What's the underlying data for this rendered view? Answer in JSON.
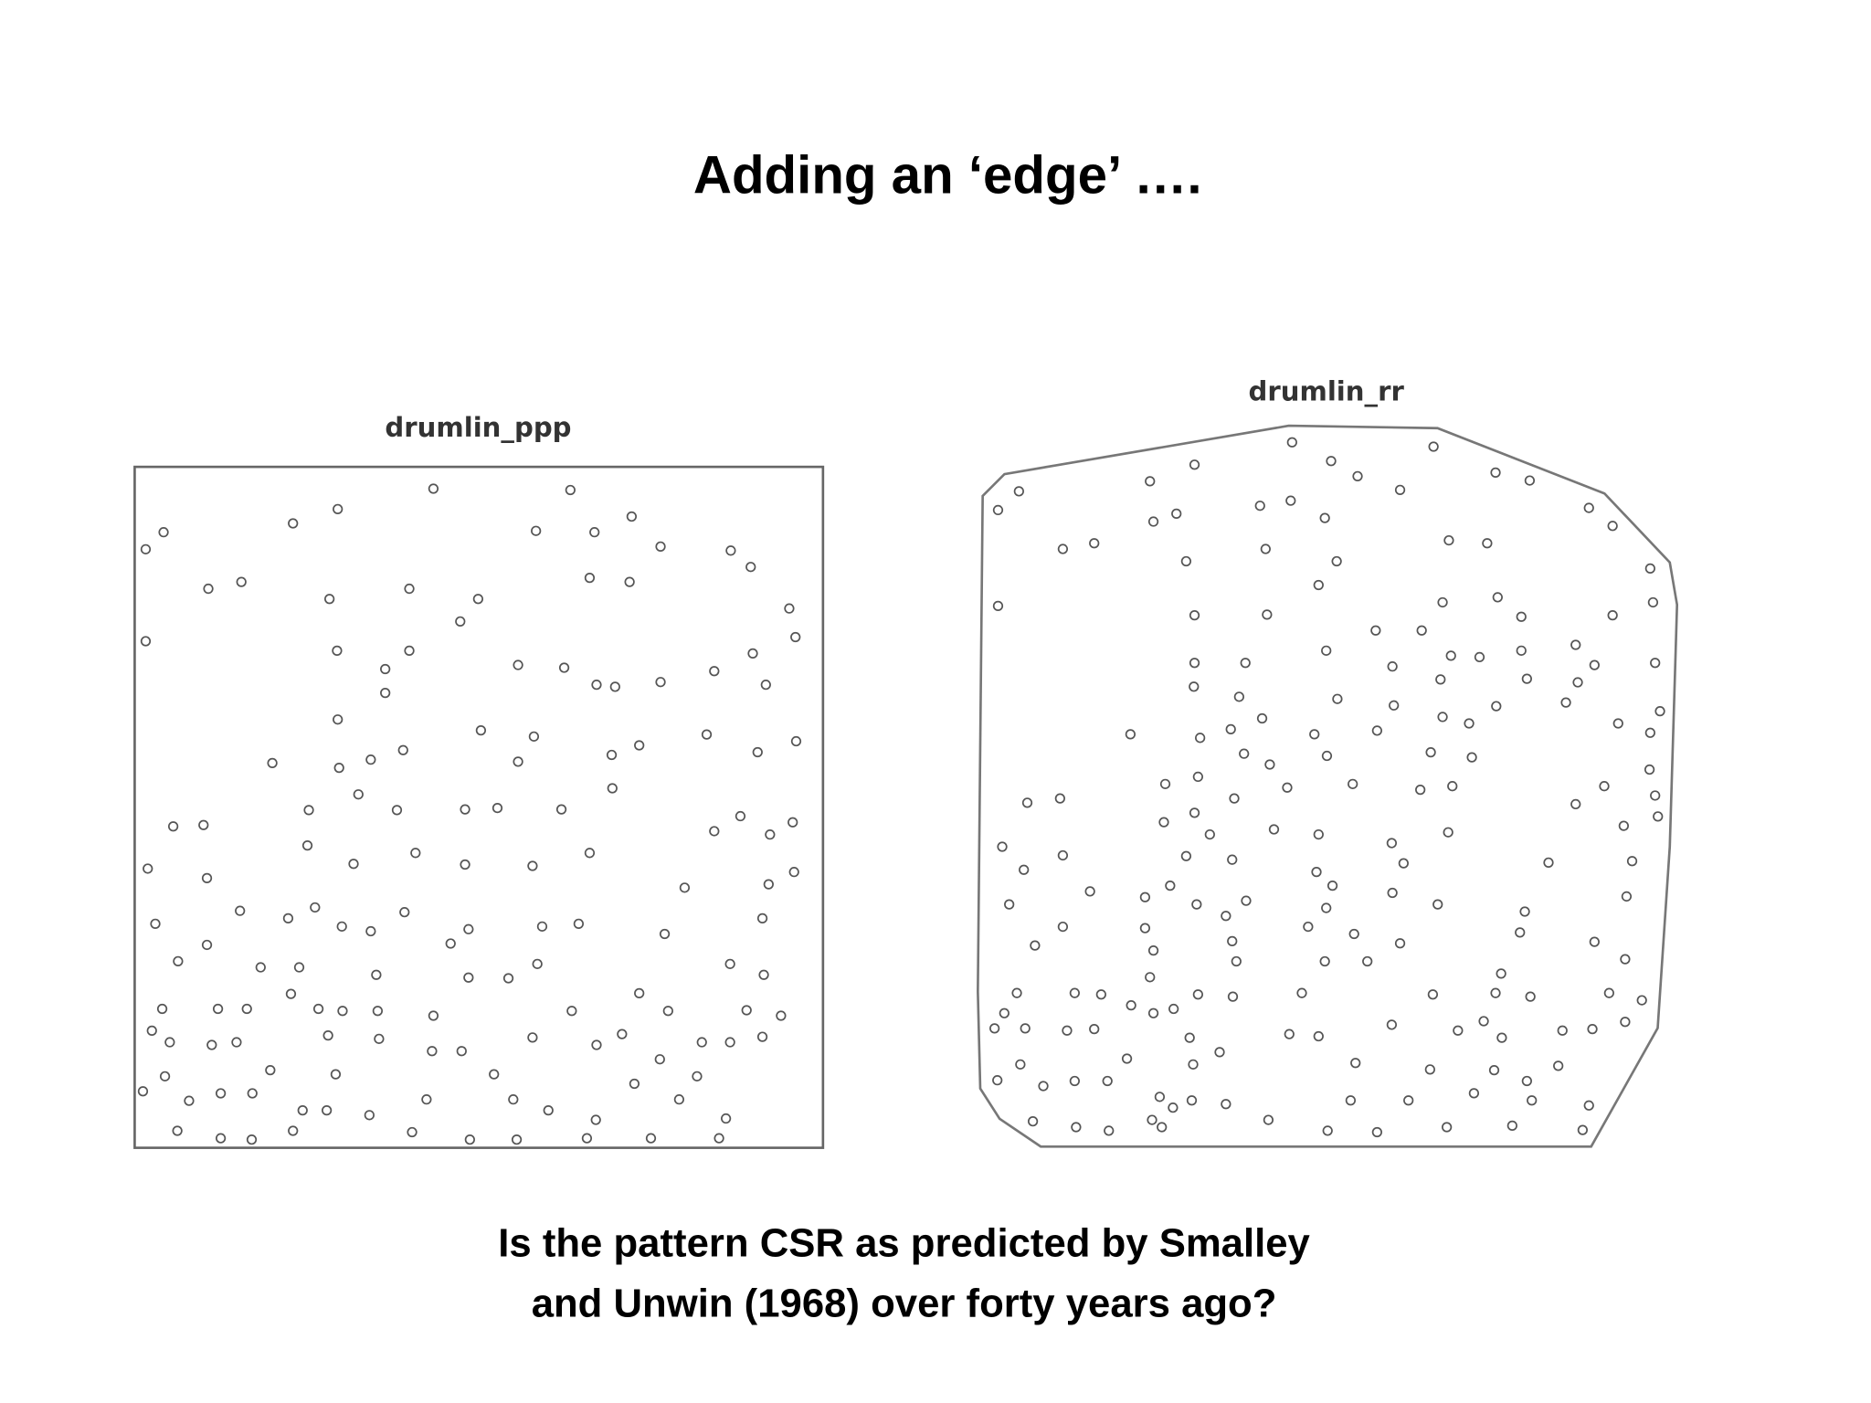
{
  "title": "Adding an ‘edge’ ….",
  "caption": [
    "Is the pattern CSR as predicted by Smalley",
    "and Unwin (1968) over forty years ago?"
  ],
  "chart_data": [
    {
      "type": "scatter",
      "title": "drumlin_ppp",
      "xlim": [
        0,
        100
      ],
      "ylim": [
        0,
        100
      ],
      "x": [
        1.6,
        4.2,
        1.6,
        10.7,
        15.5,
        23,
        29.5,
        43.4,
        63.3,
        58.3,
        66.8,
        72.2,
        86.6,
        89.5,
        95.1,
        96,
        28.3,
        39.9,
        47.3,
        49.9,
        66.1,
        71.9,
        76.4,
        29.4,
        36.4,
        39.9,
        29.5,
        36.4,
        55.7,
        62.4,
        67.1,
        69.8,
        76.4,
        84.2,
        89.8,
        91.7,
        83.1,
        20,
        29.7,
        34.3,
        39,
        50.3,
        58,
        55.7,
        69.3,
        73.3,
        90.5,
        96.1,
        5.6,
        10,
        25.3,
        32.5,
        38.1,
        48,
        52.7,
        62,
        69.4,
        84.2,
        88,
        92.3,
        95.6,
        1.9,
        10.5,
        25.1,
        31.8,
        40.8,
        48,
        57.8,
        66.1,
        79.9,
        92.1,
        95.8,
        3,
        6.3,
        15.3,
        22.3,
        26.2,
        30.1,
        34.3,
        39.2,
        45.9,
        48.5,
        59.2,
        64.5,
        77,
        91.2,
        10.5,
        18.3,
        23.9,
        35.1,
        48.5,
        54.3,
        58.5,
        73.3,
        86.5,
        91.4,
        4,
        2.5,
        12.1,
        16.3,
        22.7,
        26.7,
        30.2,
        35.3,
        43.4,
        63.5,
        77.5,
        88.9,
        93.9,
        5.1,
        11.2,
        14.8,
        28.1,
        35.5,
        43.2,
        47.5,
        57.8,
        67.1,
        70.8,
        76.3,
        82.4,
        86.5,
        91.2,
        4.4,
        1.2,
        7.9,
        12.5,
        17.1,
        19.7,
        29.2,
        34.1,
        42.4,
        52.2,
        55,
        60.1,
        67,
        72.6,
        79.1,
        81.7,
        85.9,
        6.2,
        12.5,
        17,
        24.4,
        27.9,
        23,
        40.3,
        48.7,
        55.5,
        65.7,
        75,
        84.9
      ],
      "values": [
        87.9,
        90.4,
        74.4,
        82.1,
        83.1,
        91.7,
        93.8,
        96.8,
        96.6,
        90.6,
        90.4,
        92.7,
        87.7,
        85.3,
        79.2,
        75,
        80.6,
        82.1,
        77.3,
        80.6,
        83.7,
        83.1,
        88.3,
        73,
        70.3,
        73,
        62.9,
        66.8,
        70.9,
        70.5,
        68,
        67.7,
        68.4,
        70,
        72.6,
        68,
        60.7,
        56.5,
        55.8,
        57,
        58.4,
        61.3,
        60.4,
        56.7,
        57.7,
        59.1,
        58.1,
        59.7,
        47.2,
        47.4,
        49.6,
        51.9,
        49.6,
        49.7,
        49.9,
        49.7,
        52.8,
        46.5,
        48.7,
        46,
        47.8,
        41,
        39.6,
        44.4,
        41.7,
        43.3,
        41.6,
        41.4,
        43.3,
        38.2,
        38.7,
        40.5,
        32.9,
        27.4,
        34.8,
        33.7,
        35.3,
        32.5,
        31.8,
        34.6,
        30,
        32.1,
        32.5,
        32.9,
        31.4,
        33.7,
        29.8,
        26.5,
        26.5,
        25.4,
        25,
        24.9,
        27,
        22.7,
        27,
        25.4,
        20.4,
        17.2,
        20.4,
        20.4,
        22.6,
        20.4,
        20.1,
        20.1,
        19.4,
        20.1,
        20.1,
        20.2,
        19.4,
        15.5,
        15.1,
        15.5,
        16.5,
        16,
        14.2,
        14.2,
        16.2,
        15.1,
        16.7,
        13,
        15.5,
        15.5,
        16.3,
        10.5,
        8.3,
        6.9,
        8,
        8,
        11.4,
        10.8,
        4.8,
        7.1,
        10.8,
        7.1,
        5.5,
        4.1,
        9.4,
        7.1,
        10.5,
        4.3,
        2.5,
        1.4,
        1.2,
        5.5,
        5.5,
        2.5,
        2.3,
        1.2,
        1.2,
        1.4,
        1.4,
        1.4
      ]
    },
    {
      "type": "scatter",
      "title": "drumlin_rr",
      "xlim": [
        0,
        100
      ],
      "ylim": [
        0,
        100
      ],
      "x": [
        2.9,
        5.9,
        24.7,
        31.1,
        45.1,
        50.7,
        54.5,
        60.6,
        65.4,
        74.3,
        79.2,
        87.7,
        91.1,
        12.2,
        16.7,
        25.2,
        28.5,
        40.5,
        44.9,
        49.8,
        41.3,
        51.5,
        67.6,
        73.1,
        96.5,
        2.9,
        29.9,
        48.9,
        66.7,
        74.6,
        31.1,
        41.5,
        57.1,
        63.7,
        78,
        91.1,
        96.9,
        31.1,
        38.4,
        50,
        59.5,
        67.9,
        72,
        78,
        85.8,
        88.5,
        86.1,
        97.2,
        31,
        37.5,
        51.6,
        59.7,
        66.4,
        74.4,
        78.8,
        21.9,
        31.9,
        36.3,
        40.8,
        48.3,
        57.3,
        66.7,
        70.5,
        84.4,
        91.9,
        96.5,
        97.9,
        26.9,
        31.6,
        38.2,
        41.9,
        50.1,
        65,
        70.9,
        96.4,
        7.1,
        11.8,
        31.1,
        36.8,
        44.4,
        53.8,
        63.5,
        68.1,
        85.8,
        89.9,
        97.2,
        3.5,
        12.2,
        26.7,
        33.3,
        42.5,
        48.9,
        59.4,
        67.5,
        92.7,
        97.6,
        6.6,
        29.9,
        36.5,
        48.6,
        61.1,
        81.9,
        93.9,
        16.1,
        24,
        27.6,
        38.5,
        50.9,
        59.5,
        66,
        78.5,
        93.1,
        4.5,
        12.2,
        24,
        31.4,
        35.6,
        47.4,
        50,
        54,
        60.6,
        77.8,
        88.5,
        8.2,
        25.2,
        36.5,
        37.1,
        49.8,
        55.9,
        75.1,
        92.9,
        5.6,
        13.9,
        17.7,
        24.7,
        31.6,
        36.6,
        46.5,
        65.3,
        74.3,
        79.3,
        90.6,
        95.3,
        3.8,
        2.4,
        6.8,
        12.8,
        16.7,
        22,
        25.2,
        28.1,
        30.4,
        44.7,
        48.9,
        59.4,
        68.9,
        72.6,
        75.2,
        83.9,
        88.2,
        92.9,
        6.1,
        2.8,
        9.4,
        13.9,
        18.6,
        21.4,
        30.9,
        34.7,
        54.2,
        64.9,
        74.1,
        83.3,
        78.8,
        7.9,
        14.1,
        18.8,
        26.1,
        28,
        30.7,
        35.6,
        41.7,
        50.2,
        53.5,
        57.3,
        61.8,
        67.3,
        71.2,
        76.7,
        79.5,
        86.8,
        87.7,
        26.4,
        25
      ],
      "values": [
        88.3,
        90.9,
        92.3,
        94.6,
        97.7,
        95.1,
        93,
        91.1,
        97.1,
        93.5,
        92.4,
        88.6,
        86.1,
        82.9,
        83.7,
        86.7,
        87.8,
        88.9,
        89.6,
        87.2,
        82.9,
        81.2,
        84.1,
        83.7,
        80.2,
        75,
        81.2,
        77.9,
        75.5,
        76.2,
        73.7,
        73.8,
        71.6,
        71.6,
        73.5,
        73.7,
        75.5,
        67.1,
        67.1,
        68.8,
        66.6,
        68.1,
        67.9,
        68.8,
        69.6,
        66.8,
        64.4,
        67.1,
        63.8,
        62.4,
        62.1,
        61.2,
        64.8,
        61.1,
        64.9,
        57.2,
        56.7,
        57.9,
        59.4,
        57.2,
        57.7,
        59.6,
        58.7,
        61.6,
        58.7,
        57.4,
        60.4,
        50.3,
        51.3,
        54.5,
        53,
        54.2,
        54.7,
        54,
        52.3,
        47.7,
        48.3,
        46.3,
        48.3,
        49.8,
        50.3,
        49.5,
        50,
        47.5,
        50,
        48.7,
        41.6,
        40.4,
        45,
        43.3,
        44,
        43.3,
        42.1,
        43.6,
        44.5,
        45.8,
        38.4,
        40.3,
        39.8,
        38.1,
        39.3,
        39.4,
        39.6,
        35.4,
        34.6,
        36.2,
        34.1,
        36.2,
        35.2,
        33.6,
        32.6,
        34.7,
        33.6,
        30.5,
        30.3,
        33.6,
        32,
        30.5,
        33.1,
        29.5,
        28.2,
        29.7,
        28.4,
        27.9,
        27.2,
        28.5,
        25.7,
        25.7,
        25.7,
        24,
        26,
        21.3,
        21.3,
        21.1,
        23.5,
        21.1,
        20.8,
        21.3,
        21.1,
        21.3,
        20.8,
        21.3,
        20.3,
        18.5,
        16.4,
        16.4,
        16.1,
        16.3,
        19.6,
        18.5,
        19.1,
        15.1,
        15.6,
        15.3,
        16.9,
        16.1,
        17.4,
        15.1,
        16.1,
        16.3,
        17.3,
        11.4,
        9.2,
        8.4,
        9.1,
        9.1,
        12.2,
        11.4,
        13.1,
        11.6,
        10.7,
        10.6,
        11.2,
        9.1,
        3.5,
        2.7,
        2.2,
        6.9,
        5.4,
        6.4,
        5.9,
        3.7,
        2.2,
        6.4,
        2,
        6.4,
        2.7,
        7.4,
        2.9,
        6.4,
        2.3,
        5.7,
        2.7,
        3.7
      ]
    }
  ]
}
